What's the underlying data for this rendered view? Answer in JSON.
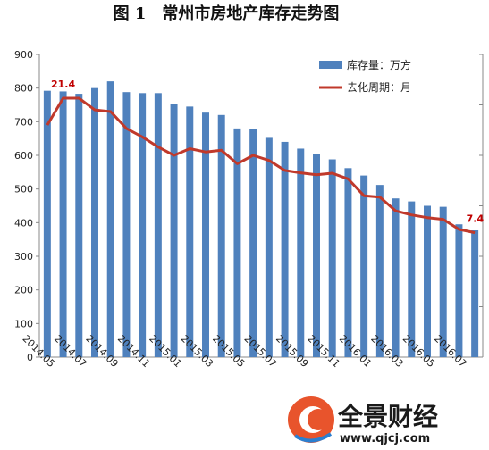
{
  "chart_data": {
    "type": "bar",
    "title": "图 1　常州市房地产库存走势图",
    "categories": [
      "2014.05",
      "2014.06",
      "2014.07",
      "2014.08",
      "2014.09",
      "2014.10",
      "2014.11",
      "2014.12",
      "2015.01",
      "2015.02",
      "2015.03",
      "2015.04",
      "2015.05",
      "2015.06",
      "2015.07",
      "2015.08",
      "2015.09",
      "2015.10",
      "2015.11",
      "2015.12",
      "2016.01",
      "2016.02",
      "2016.03",
      "2016.04",
      "2016.05",
      "2016.06",
      "2016.07",
      "2016.08"
    ],
    "x_tick_labels": [
      "2014.05",
      "2014.07",
      "2014.09",
      "2014.11",
      "2015.01",
      "2015.03",
      "2015.05",
      "2015.07",
      "2015.09",
      "2015.11",
      "2016.01",
      "2016.03",
      "2016.05",
      "2016.07"
    ],
    "ylim": [
      0,
      900
    ],
    "yticks": [
      0,
      100,
      200,
      300,
      400,
      500,
      600,
      700,
      800,
      900
    ],
    "grid": false,
    "legend": "top-right",
    "series": [
      {
        "name": "库存量：万方",
        "type": "bar",
        "color": "#4f81bd",
        "values": [
          792,
          790,
          783,
          800,
          820,
          788,
          785,
          785,
          752,
          745,
          727,
          720,
          680,
          677,
          652,
          640,
          620,
          603,
          588,
          562,
          540,
          512,
          472,
          463,
          450,
          447,
          395,
          377
        ]
      },
      {
        "name": "去化周期：月",
        "type": "line",
        "color": "#c0392b",
        "values": [
          690,
          770,
          770,
          735,
          730,
          680,
          655,
          625,
          600,
          620,
          610,
          615,
          575,
          600,
          585,
          555,
          548,
          542,
          547,
          530,
          480,
          476,
          435,
          423,
          415,
          410,
          380,
          370
        ]
      }
    ],
    "annotations": [
      {
        "text": "21.4",
        "series": "去化周期：月",
        "index": 1
      },
      {
        "text": "7.4",
        "series": "去化周期：月",
        "index": 27
      }
    ]
  },
  "watermark": {
    "brand": "全景财经",
    "url": "www.qjcj.com"
  }
}
